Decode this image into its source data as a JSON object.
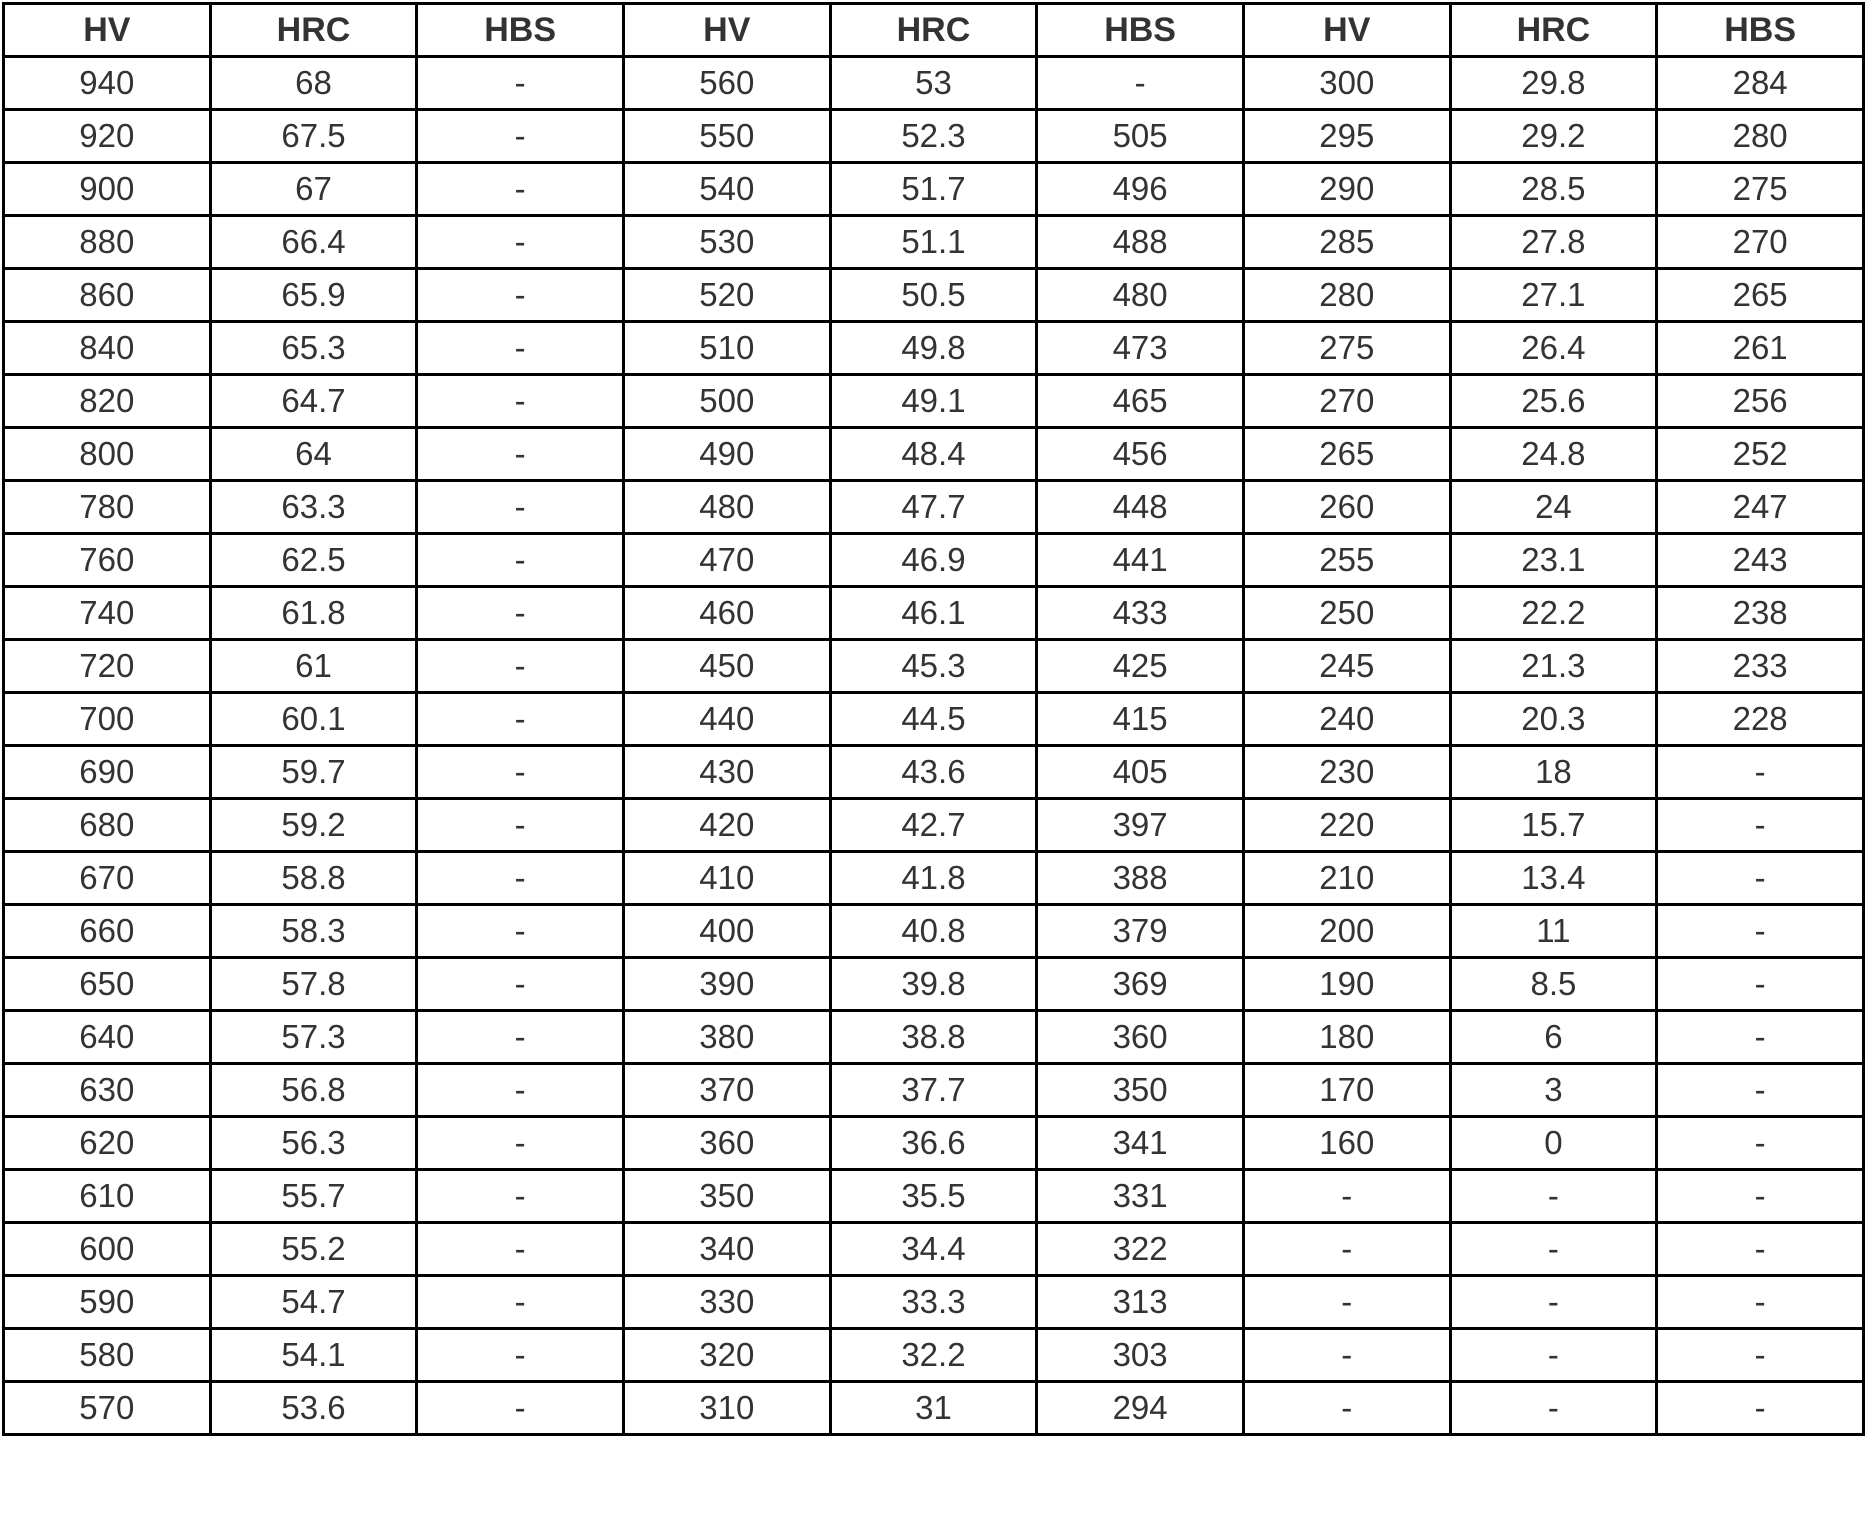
{
  "table": {
    "headers": [
      "HV",
      "HRC",
      "HBS",
      "HV",
      "HRC",
      "HBS",
      "HV",
      "HRC",
      "HBS"
    ],
    "rows": [
      [
        "940",
        "68",
        "-",
        "560",
        "53",
        "-",
        "300",
        "29.8",
        "284"
      ],
      [
        "920",
        "67.5",
        "-",
        "550",
        "52.3",
        "505",
        "295",
        "29.2",
        "280"
      ],
      [
        "900",
        "67",
        "-",
        "540",
        "51.7",
        "496",
        "290",
        "28.5",
        "275"
      ],
      [
        "880",
        "66.4",
        "-",
        "530",
        "51.1",
        "488",
        "285",
        "27.8",
        "270"
      ],
      [
        "860",
        "65.9",
        "-",
        "520",
        "50.5",
        "480",
        "280",
        "27.1",
        "265"
      ],
      [
        "840",
        "65.3",
        "-",
        "510",
        "49.8",
        "473",
        "275",
        "26.4",
        "261"
      ],
      [
        "820",
        "64.7",
        "-",
        "500",
        "49.1",
        "465",
        "270",
        "25.6",
        "256"
      ],
      [
        "800",
        "64",
        "-",
        "490",
        "48.4",
        "456",
        "265",
        "24.8",
        "252"
      ],
      [
        "780",
        "63.3",
        "-",
        "480",
        "47.7",
        "448",
        "260",
        "24",
        "247"
      ],
      [
        "760",
        "62.5",
        "-",
        "470",
        "46.9",
        "441",
        "255",
        "23.1",
        "243"
      ],
      [
        "740",
        "61.8",
        "-",
        "460",
        "46.1",
        "433",
        "250",
        "22.2",
        "238"
      ],
      [
        "720",
        "61",
        "-",
        "450",
        "45.3",
        "425",
        "245",
        "21.3",
        "233"
      ],
      [
        "700",
        "60.1",
        "-",
        "440",
        "44.5",
        "415",
        "240",
        "20.3",
        "228"
      ],
      [
        "690",
        "59.7",
        "-",
        "430",
        "43.6",
        "405",
        "230",
        "18",
        "-"
      ],
      [
        "680",
        "59.2",
        "-",
        "420",
        "42.7",
        "397",
        "220",
        "15.7",
        "-"
      ],
      [
        "670",
        "58.8",
        "-",
        "410",
        "41.8",
        "388",
        "210",
        "13.4",
        "-"
      ],
      [
        "660",
        "58.3",
        "-",
        "400",
        "40.8",
        "379",
        "200",
        "11",
        "-"
      ],
      [
        "650",
        "57.8",
        "-",
        "390",
        "39.8",
        "369",
        "190",
        "8.5",
        "-"
      ],
      [
        "640",
        "57.3",
        "-",
        "380",
        "38.8",
        "360",
        "180",
        "6",
        "-"
      ],
      [
        "630",
        "56.8",
        "-",
        "370",
        "37.7",
        "350",
        "170",
        "3",
        "-"
      ],
      [
        "620",
        "56.3",
        "-",
        "360",
        "36.6",
        "341",
        "160",
        "0",
        "-"
      ],
      [
        "610",
        "55.7",
        "-",
        "350",
        "35.5",
        "331",
        "-",
        "-",
        "-"
      ],
      [
        "600",
        "55.2",
        "-",
        "340",
        "34.4",
        "322",
        "-",
        "-",
        "-"
      ],
      [
        "590",
        "54.7",
        "-",
        "330",
        "33.3",
        "313",
        "-",
        "-",
        "-"
      ],
      [
        "580",
        "54.1",
        "-",
        "320",
        "32.2",
        "303",
        "-",
        "-",
        "-"
      ],
      [
        "570",
        "53.6",
        "-",
        "310",
        "31",
        "294",
        "-",
        "-",
        "-"
      ]
    ]
  }
}
